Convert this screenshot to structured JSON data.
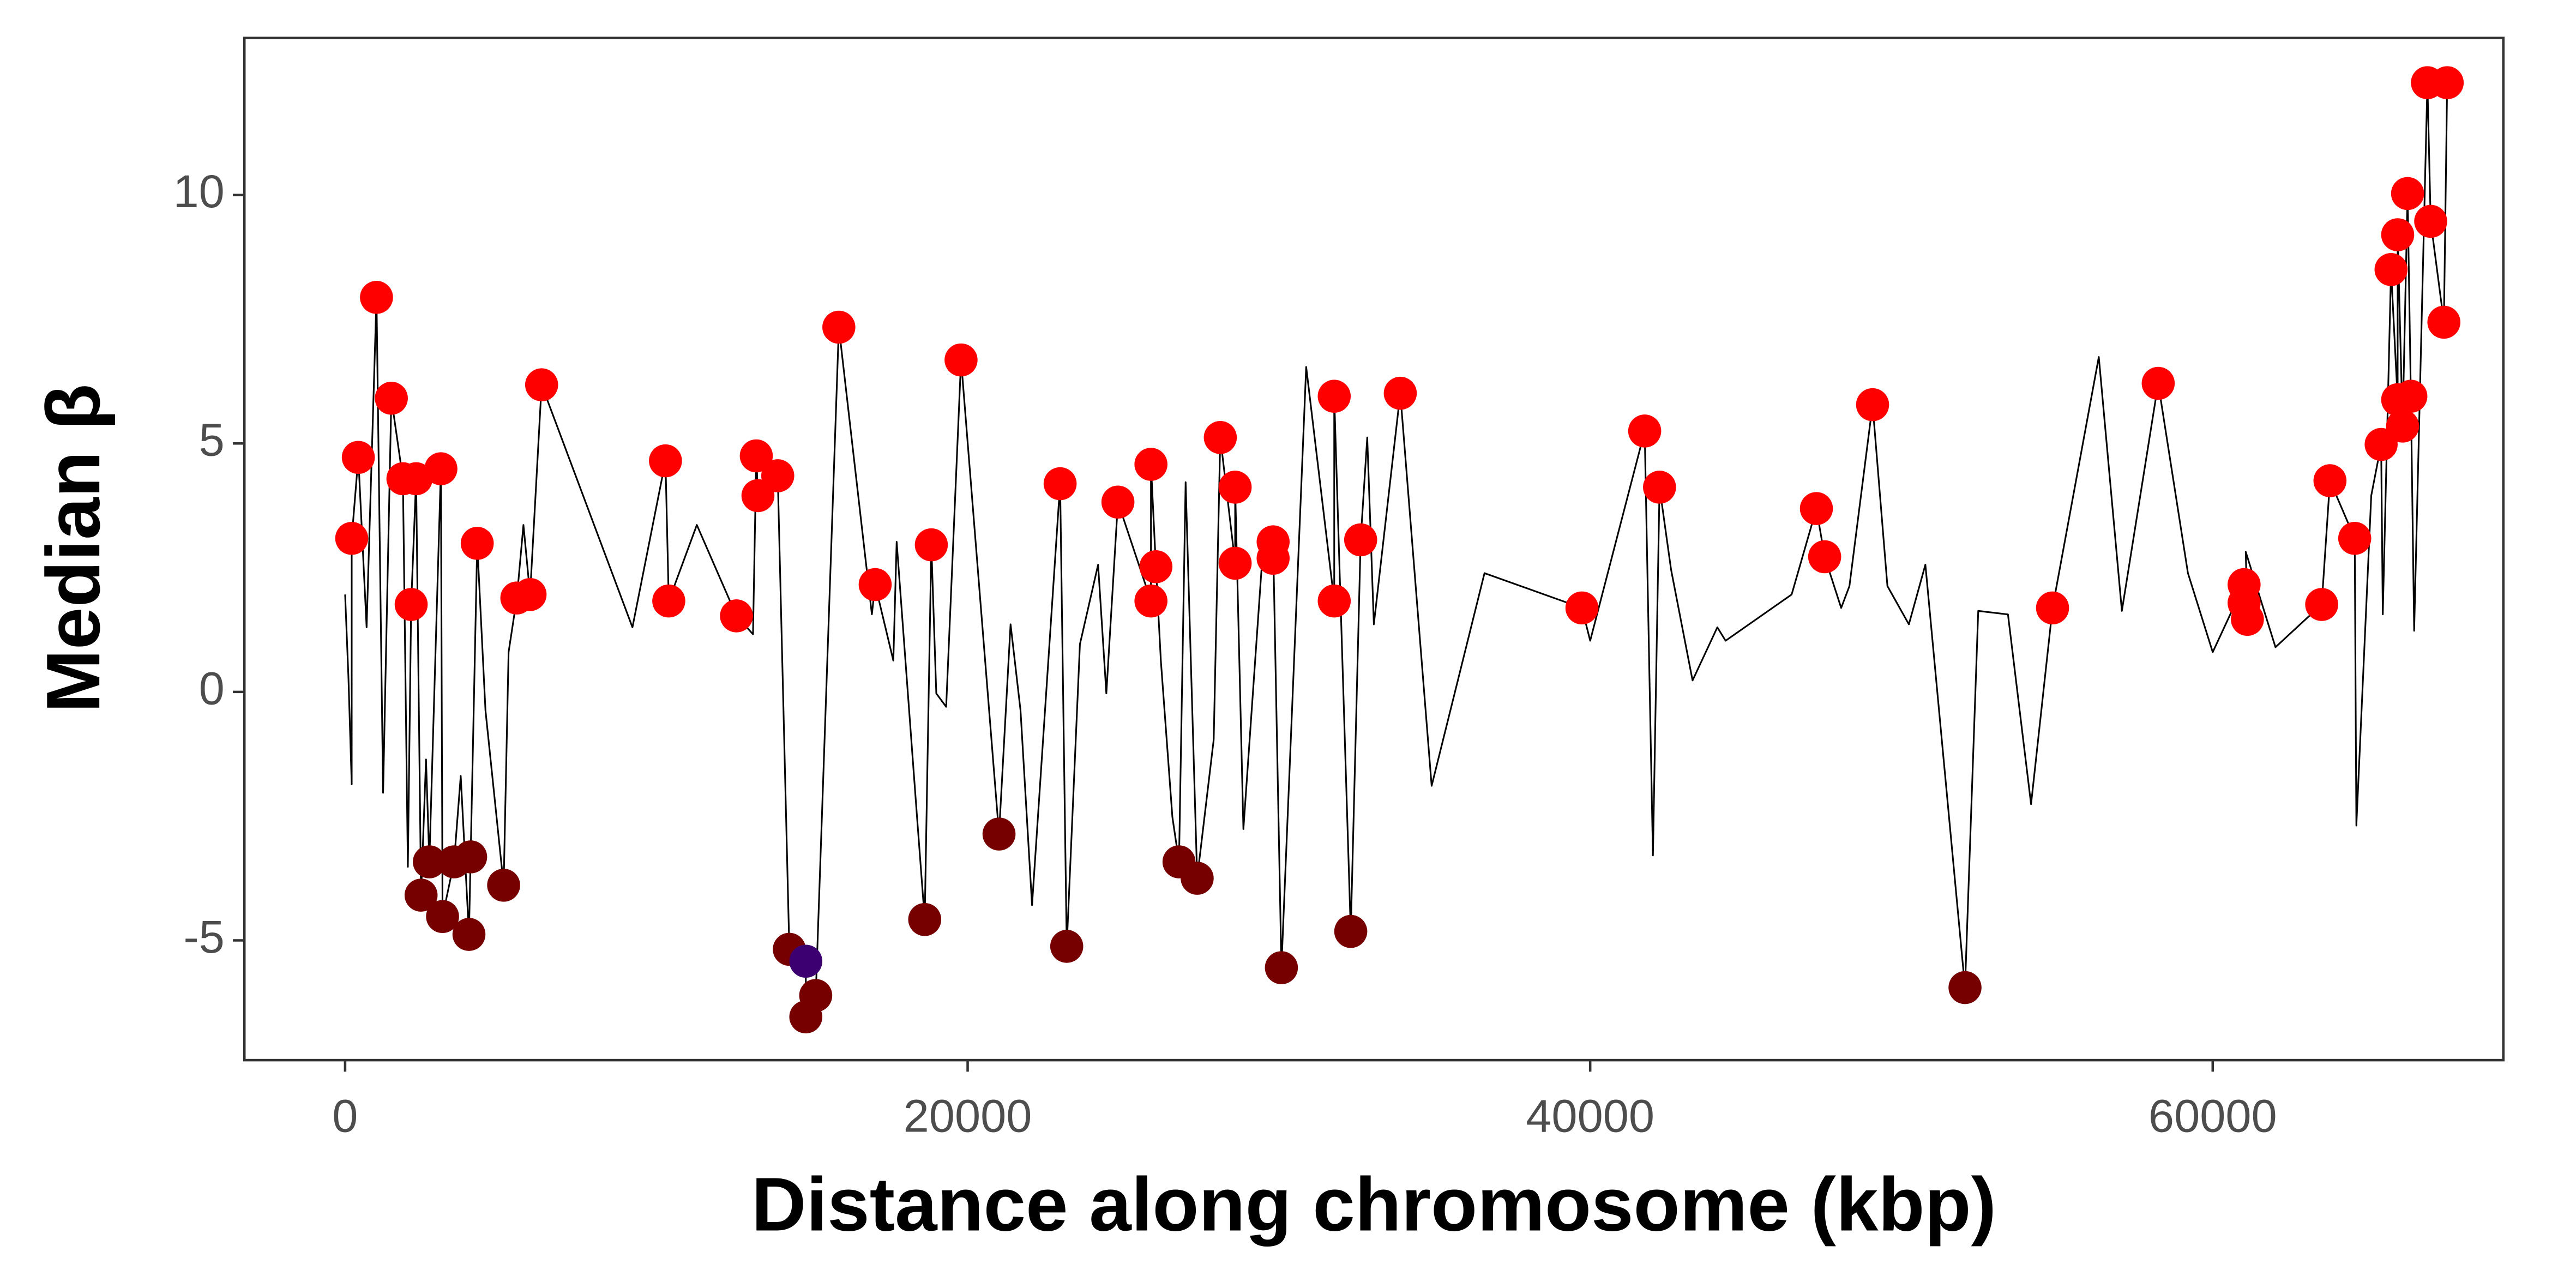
{
  "chart_data": {
    "type": "line",
    "x_label": "Distance along chromosome (kbp)",
    "y_label": "Median β",
    "xlim": [
      -3236,
      69337
    ],
    "ylim": [
      -7.41,
      13.16
    ],
    "xticks": [
      0,
      20000,
      40000,
      60000
    ],
    "yticks": [
      -5,
      0,
      5,
      10
    ],
    "grid": false,
    "series": [
      {
        "mark": "line",
        "color": "#000000",
        "x": [
          0,
          106,
          212,
          212,
          424,
          690,
          1008,
          1220,
          1485,
          1857,
          2016,
          2122,
          2281,
          2440,
          2599,
          2706,
          3077,
          3130,
          3501,
          3714,
          3979,
          4032,
          4244,
          4509,
          5093,
          5252,
          5517,
          5729,
          5942,
          6313,
          9231,
          10292,
          10398,
          11300,
          12573,
          13104,
          13210,
          13263,
          13899,
          14271,
          14801,
          14801,
          15119,
          15862,
          16923,
          17029,
          17613,
          17719,
          18355,
          18621,
          18833,
          18992,
          19310,
          19788,
          21008,
          21379,
          21698,
          22069,
          22971,
          23183,
          23607,
          24191,
          24456,
          24828,
          25889,
          25889,
          26048,
          26207,
          26578,
          26790,
          27003,
          27374,
          27905,
          28117,
          28594,
          28594,
          28859,
          29496,
          29814,
          29814,
          30080,
          30876,
          31777,
          31777,
          32308,
          32626,
          32838,
          33050,
          33899,
          34907,
          36605,
          39735,
          40000,
          41751,
          42016,
          42228,
          42599,
          43289,
          44085,
          44350,
          46472,
          47268,
          47533,
          48064,
          48329,
          49072,
          49549,
          50239,
          50769,
          52042,
          52467,
          53422,
          54164,
          54854,
          56340,
          57082,
          58249,
          59204,
          60000,
          61008,
          61008,
          61114,
          61061,
          62016,
          63501,
          63767,
          64562,
          64615,
          65093,
          65411,
          65464,
          65729,
          65942,
          65942,
          66101,
          66260,
          66366,
          66472,
          66897,
          67003,
          67427,
          67533
        ],
        "values": [
          1.96,
          0.3,
          -1.86,
          3.09,
          4.72,
          1.3,
          7.94,
          -2.03,
          5.91,
          4.29,
          -3.52,
          1.76,
          4.29,
          -4.09,
          -1.36,
          -3.42,
          4.49,
          -4.52,
          -3.42,
          -1.69,
          -4.88,
          -3.32,
          2.99,
          -0.37,
          -3.89,
          0.8,
          1.89,
          3.36,
          1.96,
          6.18,
          1.3,
          4.65,
          1.83,
          3.36,
          1.53,
          1.16,
          4.75,
          3.95,
          4.35,
          -5.18,
          -5.42,
          -6.54,
          -6.11,
          7.34,
          1.56,
          2.16,
          0.63,
          3.02,
          -2.36,
          -4.58,
          2.96,
          -0.03,
          -0.3,
          6.68,
          -2.86,
          1.36,
          -0.37,
          -4.29,
          4.19,
          -5.12,
          0.96,
          2.56,
          -0.03,
          3.82,
          1.83,
          4.58,
          2.52,
          0.63,
          -2.52,
          -3.42,
          4.22,
          -3.75,
          -0.96,
          5.12,
          2.59,
          4.12,
          -2.76,
          2.96,
          2.69,
          3.02,
          -5.55,
          6.54,
          1.83,
          5.95,
          -4.82,
          3.06,
          5.12,
          1.36,
          6.01,
          -1.89,
          2.39,
          1.69,
          1.03,
          5.25,
          -3.29,
          4.12,
          2.46,
          0.23,
          1.3,
          1.03,
          1.96,
          3.69,
          2.72,
          1.69,
          2.13,
          5.78,
          2.13,
          1.36,
          2.56,
          -5.95,
          1.63,
          1.56,
          -2.26,
          1.69,
          6.74,
          1.63,
          6.21,
          2.39,
          0.8,
          2.16,
          1.79,
          1.46,
          2.82,
          0.9,
          1.76,
          4.25,
          3.09,
          -2.69,
          3.95,
          4.98,
          1.56,
          8.5,
          5.88,
          9.2,
          5.35,
          10.03,
          5.95,
          1.23,
          12.26,
          9.47,
          7.44,
          12.26
        ]
      },
      {
        "mark": "point",
        "color": "#ff0000",
        "x": [
          212,
          424,
          1008,
          1485,
          1857,
          2281,
          2122,
          3077,
          4244,
          5517,
          5942,
          6313,
          10292,
          10398,
          12573,
          13210,
          13263,
          13899,
          15862,
          17029,
          18833,
          19788,
          22971,
          24828,
          25889,
          26048,
          25889,
          28117,
          28594,
          28594,
          29814,
          29814,
          31777,
          31777,
          32626,
          33899,
          39735,
          41751,
          42228,
          47268,
          47533,
          49072,
          54854,
          58249,
          61008,
          61008,
          61114,
          63501,
          63767,
          64562,
          65411,
          65729,
          65942,
          66101,
          65942,
          66366,
          66260,
          67003,
          66897,
          67533,
          67427
        ],
        "values": [
          3.09,
          4.72,
          7.94,
          5.91,
          4.29,
          4.29,
          1.76,
          4.49,
          2.99,
          1.89,
          1.96,
          6.18,
          4.65,
          1.83,
          1.53,
          4.75,
          3.95,
          4.35,
          7.34,
          2.16,
          2.96,
          6.68,
          4.19,
          3.82,
          4.58,
          2.52,
          1.83,
          5.12,
          4.12,
          2.59,
          3.02,
          2.69,
          5.95,
          1.83,
          3.06,
          6.01,
          1.69,
          5.25,
          4.12,
          3.69,
          2.72,
          5.78,
          1.69,
          6.21,
          2.16,
          1.79,
          1.46,
          1.76,
          4.25,
          3.09,
          4.98,
          8.5,
          9.2,
          5.35,
          5.88,
          5.95,
          10.03,
          9.47,
          12.26,
          12.26,
          7.44
        ]
      },
      {
        "mark": "point",
        "color": "#760000",
        "x": [
          2440,
          2706,
          3130,
          3501,
          4032,
          3979,
          5093,
          14271,
          14801,
          15119,
          18621,
          21008,
          23183,
          26790,
          27374,
          30080,
          32308,
          52042
        ],
        "values": [
          -4.09,
          -3.42,
          -4.52,
          -3.42,
          -3.32,
          -4.88,
          -3.89,
          -5.18,
          -6.54,
          -6.11,
          -4.58,
          -2.86,
          -5.12,
          -3.42,
          -3.75,
          -5.55,
          -4.82,
          -5.95
        ]
      },
      {
        "mark": "point",
        "color": "#3d0070",
        "x": [
          14801
        ],
        "values": [
          -5.42
        ]
      }
    ]
  }
}
